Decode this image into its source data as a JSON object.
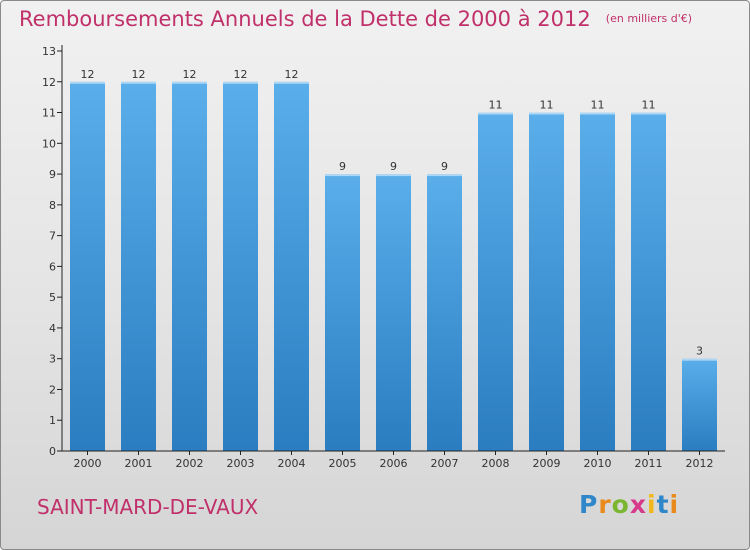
{
  "header": {
    "title": "Remboursements Annuels de la Dette de 2000 à 2012",
    "unit_note": "(en milliers d'€)"
  },
  "footer": {
    "commune": "SAINT-MARD-DE-VAUX",
    "brand_letters": [
      "P",
      "r",
      "o",
      "x",
      "i",
      "t",
      "i"
    ]
  },
  "colors": {
    "accent_text": "#c0306a",
    "bar_top": "#5aaeea",
    "bar_bottom": "#2a7dc0",
    "axis": "#222222"
  },
  "chart_data": {
    "type": "bar",
    "title": "Remboursements Annuels de la Dette de 2000 à 2012",
    "subtitle": "(en milliers d'€)",
    "xlabel": "",
    "ylabel": "",
    "categories": [
      "2000",
      "2001",
      "2002",
      "2003",
      "2004",
      "2005",
      "2006",
      "2007",
      "2008",
      "2009",
      "2010",
      "2011",
      "2012"
    ],
    "values": [
      12,
      12,
      12,
      12,
      12,
      9,
      9,
      9,
      11,
      11,
      11,
      11,
      3
    ],
    "value_labels": [
      "12",
      "12",
      "12",
      "12",
      "12",
      "9",
      "9",
      "9",
      "11",
      "11",
      "11",
      "11",
      "3"
    ],
    "ylim": [
      0,
      13
    ],
    "yticks": [
      "0",
      "1",
      "2",
      "3",
      "4",
      "5",
      "6",
      "7",
      "8",
      "9",
      "10",
      "11",
      "12",
      "13"
    ],
    "grid": false,
    "legend": "none"
  }
}
